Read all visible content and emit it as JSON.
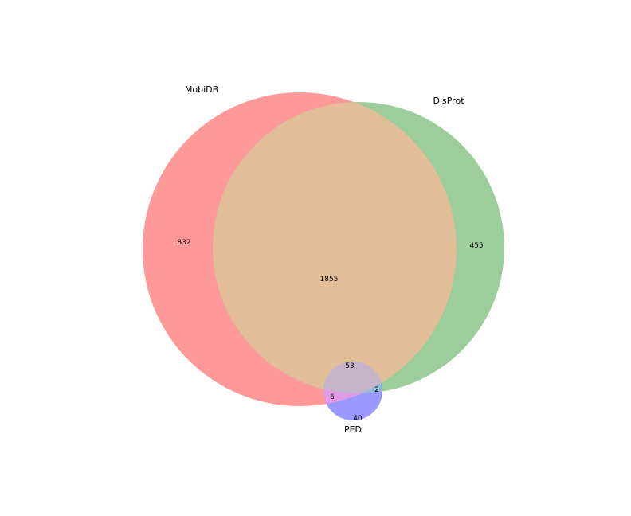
{
  "chart_data": {
    "type": "venn3",
    "sets": [
      {
        "name": "MobiDB",
        "color": "#ff0000"
      },
      {
        "name": "DisProt",
        "color": "#008000"
      },
      {
        "name": "PED",
        "color": "#0000ff"
      }
    ],
    "regions": [
      {
        "key": "mobidb_only",
        "value": "832"
      },
      {
        "key": "disprot_only",
        "value": "455"
      },
      {
        "key": "mobidb_disprot",
        "value": "1855"
      },
      {
        "key": "mobidb_disprot_ped",
        "value": "53"
      },
      {
        "key": "disprot_ped",
        "value": "2"
      },
      {
        "key": "mobidb_ped",
        "value": "6"
      },
      {
        "key": "ped_only",
        "value": "40"
      }
    ]
  }
}
